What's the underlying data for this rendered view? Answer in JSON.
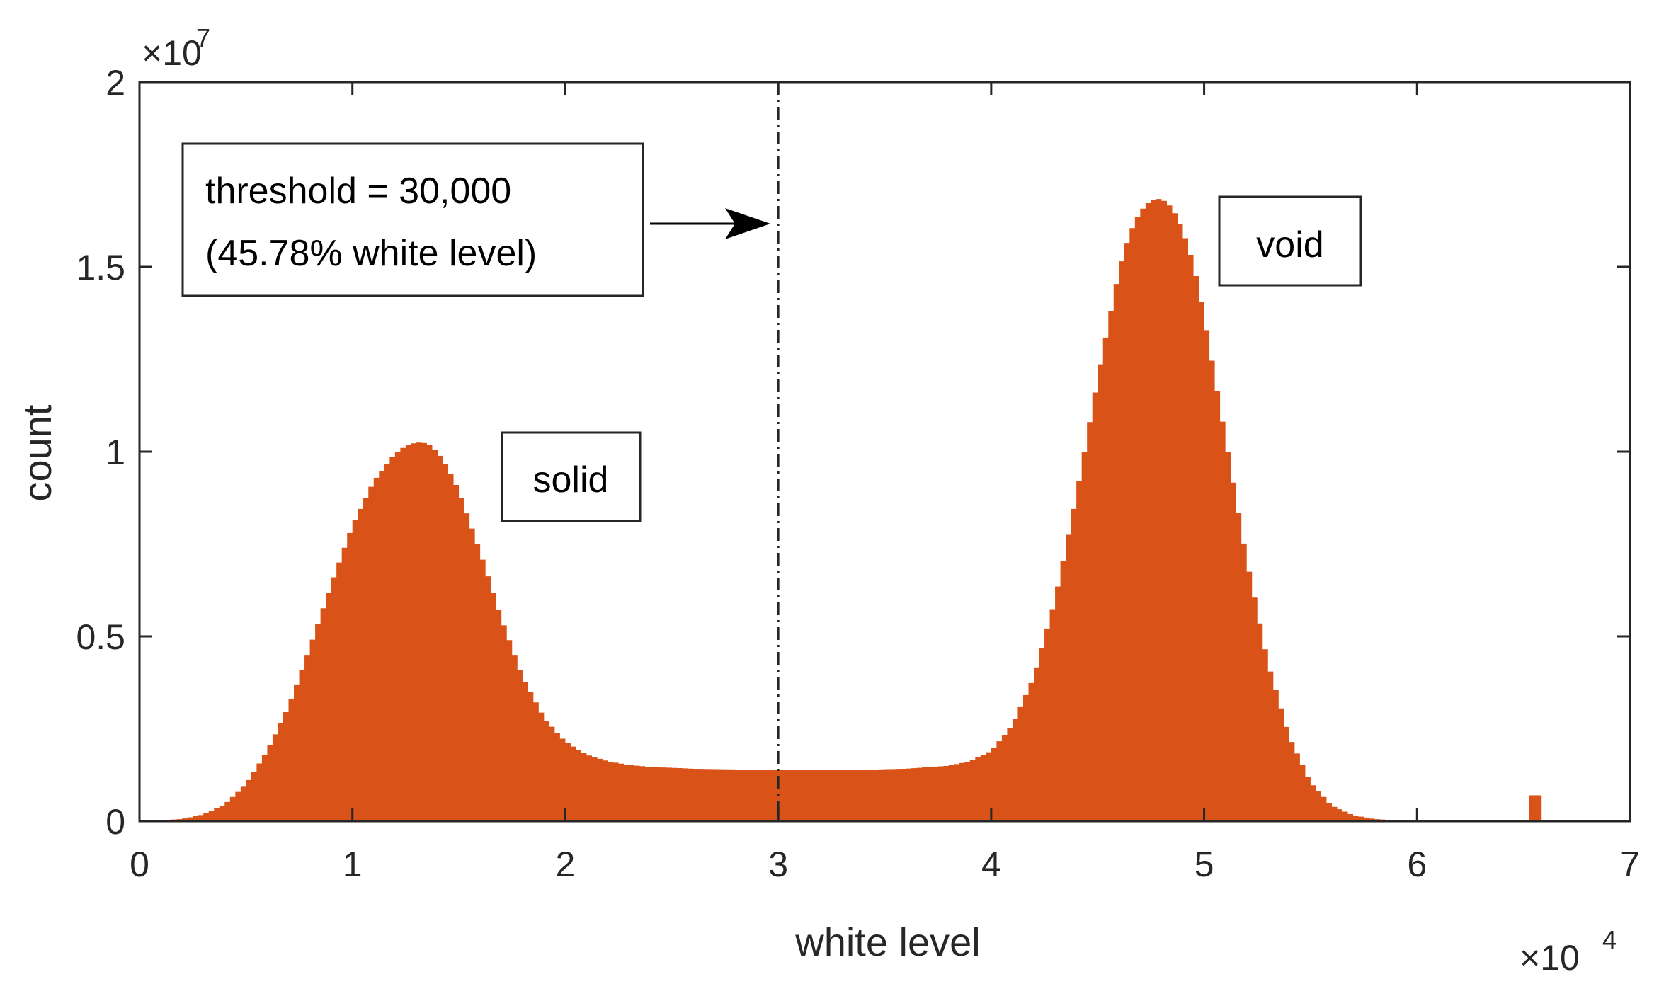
{
  "chart_data": {
    "type": "histogram",
    "xlabel": "white level",
    "ylabel": "count",
    "x_multiplier": "×10",
    "x_multiplier_exp": "4",
    "y_multiplier": "×10",
    "y_multiplier_exp": "7",
    "xlim": [
      0,
      70000
    ],
    "ylim": [
      0,
      20000000
    ],
    "x_tick_values": [
      0,
      10000,
      20000,
      30000,
      40000,
      50000,
      60000,
      70000
    ],
    "x_tick_labels": [
      "0",
      "1",
      "2",
      "3",
      "4",
      "5",
      "6",
      "7"
    ],
    "y_tick_values": [
      0,
      5000000,
      10000000,
      15000000,
      20000000
    ],
    "y_tick_labels": [
      "0",
      "0.5",
      "1",
      "1.5",
      "2"
    ],
    "grid": false,
    "bar_color": "#d95319",
    "bin_width": 250,
    "series": [
      {
        "x": [
          0,
          1000,
          2000,
          3000,
          4000,
          5000,
          6000,
          7000,
          8000,
          9000,
          10000,
          11000,
          12000,
          12500,
          13000,
          13500,
          14000,
          14500,
          15000,
          16000,
          17000,
          18000,
          19000,
          20000,
          21000,
          22000,
          23000,
          24000,
          26000,
          28000,
          30000,
          32000,
          34000,
          36000,
          38000,
          39000,
          40000,
          41000,
          42000,
          43000,
          44000,
          45000,
          46000,
          46500,
          47000,
          47500,
          48000,
          48500,
          49000,
          49500,
          50000,
          51000,
          52000,
          53000,
          54000,
          55000,
          56000,
          57000,
          58000,
          59000,
          60000,
          61000,
          62000,
          63000,
          64000,
          65000,
          65250,
          65500
        ],
        "values": [
          0,
          20000,
          60000,
          180000,
          450000,
          1000000,
          1900000,
          3100000,
          4700000,
          6400000,
          8000000,
          9200000,
          9950000,
          10150000,
          10250000,
          10230000,
          10000000,
          9550000,
          8950000,
          7300000,
          5500000,
          3900000,
          2800000,
          2150000,
          1800000,
          1620000,
          1520000,
          1470000,
          1420000,
          1400000,
          1380000,
          1380000,
          1390000,
          1420000,
          1500000,
          1620000,
          1900000,
          2600000,
          3900000,
          6000000,
          8800000,
          12000000,
          14900000,
          15900000,
          16500000,
          16800000,
          16850000,
          16600000,
          16000000,
          15100000,
          13700000,
          10400000,
          7100000,
          4300000,
          2300000,
          1050000,
          420000,
          160000,
          60000,
          20000,
          10000,
          5000,
          3000,
          2000,
          2000,
          2000,
          700000,
          0
        ]
      }
    ],
    "threshold": 30000,
    "annotations": {
      "threshold_line1": "threshold = 30,000",
      "threshold_line2": "(45.78% white level)",
      "solid": "solid",
      "void": "void"
    }
  }
}
